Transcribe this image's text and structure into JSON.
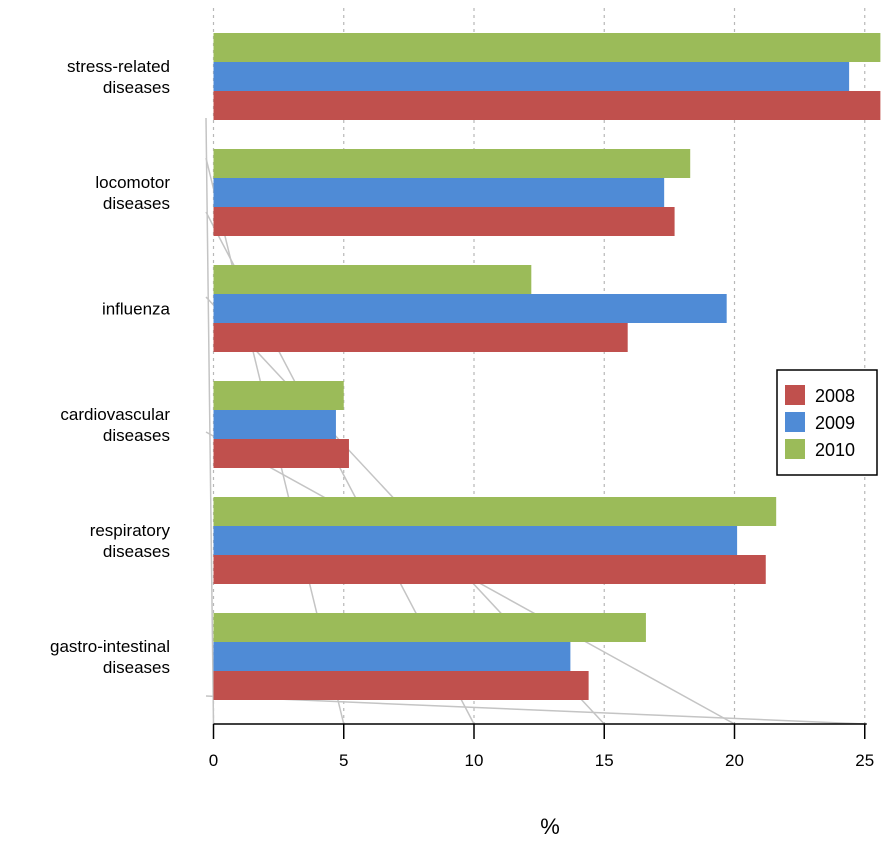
{
  "chart_data": {
    "type": "bar",
    "orientation": "horizontal",
    "categories": [
      [
        "gastro-intestinal",
        "diseases"
      ],
      [
        "respiratory",
        "diseases"
      ],
      [
        "cardiovascular",
        "diseases"
      ],
      [
        "influenza"
      ],
      [
        "locomotor",
        "diseases"
      ],
      [
        "stress-related",
        "diseases"
      ]
    ],
    "series": [
      {
        "name": "2008",
        "color": "#c0504d",
        "values": [
          14.4,
          21.2,
          5.2,
          15.9,
          17.7,
          25.6
        ]
      },
      {
        "name": "2009",
        "color": "#4f8bd6",
        "values": [
          13.7,
          20.1,
          4.7,
          19.7,
          17.3,
          24.4
        ]
      },
      {
        "name": "2010",
        "color": "#9bbb59",
        "values": [
          16.6,
          21.6,
          5.0,
          12.2,
          18.3,
          25.6
        ]
      }
    ],
    "xlabel": "%",
    "xlim": [
      0,
      25
    ],
    "xticks": [
      "0",
      "5",
      "10",
      "15",
      "20",
      "25"
    ],
    "grid": "vertical-dotted",
    "legend_position": "right"
  }
}
